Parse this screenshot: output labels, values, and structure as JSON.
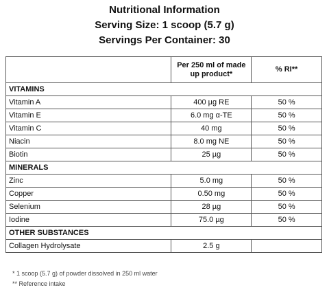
{
  "header": {
    "title": "Nutritional Information",
    "serving_size": "Serving Size: 1 scoop (5.7 g)",
    "servings": "Servings Per Container: 30"
  },
  "table": {
    "columns": [
      "Per 250 ml of made up product*",
      "% RI**"
    ],
    "sections": [
      {
        "heading": "VITAMINS",
        "rows": [
          [
            "Vitamin A",
            "400 µg RE",
            "50 %"
          ],
          [
            "Vitamin E",
            "6.0 mg α-TE",
            "50 %"
          ],
          [
            "Vitamin C",
            "40 mg",
            "50 %"
          ],
          [
            "Niacin",
            "8.0 mg NE",
            "50 %"
          ],
          [
            "Biotin",
            "25 µg",
            "50 %"
          ]
        ]
      },
      {
        "heading": "MINERALS",
        "rows": [
          [
            "Zinc",
            "5.0 mg",
            "50 %"
          ],
          [
            "Copper",
            "0.50 mg",
            "50 %"
          ],
          [
            "Selenium",
            "28 µg",
            "50 %"
          ],
          [
            "Iodine",
            "75.0 µg",
            "50 %"
          ]
        ]
      },
      {
        "heading": "OTHER SUBSTANCES",
        "rows": [
          [
            "Collagen Hydrolysate",
            "2.5 g"
          ]
        ]
      }
    ]
  },
  "footnotes": [
    "* 1 scoop (5.7 g) of powder dissolved in 250 ml water",
    "** Reference intake"
  ]
}
